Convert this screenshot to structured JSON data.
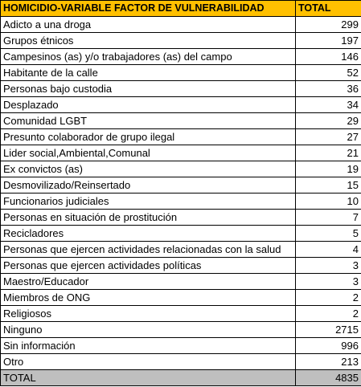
{
  "colors": {
    "header_bg": "#FFC000",
    "total_bg": "#BFBFBF",
    "border": "#000000",
    "text": "#000000"
  },
  "header": {
    "category": "HOMICIDIO-VARIABLE FACTOR DE VULNERABILIDAD",
    "total": "TOTAL"
  },
  "rows": [
    {
      "label": "Adicto a una droga",
      "value": "299"
    },
    {
      "label": "Grupos étnicos",
      "value": "197"
    },
    {
      "label": "Campesinos (as) y/o trabajadores (as) del campo",
      "value": "146"
    },
    {
      "label": "Habitante de la calle",
      "value": "52"
    },
    {
      "label": "Personas bajo custodia",
      "value": "36"
    },
    {
      "label": "Desplazado",
      "value": "34"
    },
    {
      "label": "Comunidad LGBT",
      "value": "29"
    },
    {
      "label": "Presunto colaborador de grupo ilegal",
      "value": "27"
    },
    {
      "label": "Lider social,Ambiental,Comunal",
      "value": "21"
    },
    {
      "label": "Ex convictos (as)",
      "value": "19"
    },
    {
      "label": "Desmovilizado/Reinsertado",
      "value": "15"
    },
    {
      "label": "Funcionarios judiciales",
      "value": "10"
    },
    {
      "label": "Personas en situación de prostitución",
      "value": "7"
    },
    {
      "label": "Recicladores",
      "value": "5"
    },
    {
      "label": "Personas que ejercen actividades relacionadas con la salud",
      "value": "4"
    },
    {
      "label": "Personas que ejercen actividades políticas",
      "value": "3"
    },
    {
      "label": "Maestro/Educador",
      "value": "3"
    },
    {
      "label": "Miembros de ONG",
      "value": "2"
    },
    {
      "label": "Religiosos",
      "value": "2"
    },
    {
      "label": "Ninguno",
      "value": "2715"
    },
    {
      "label": "Sin información",
      "value": "996"
    },
    {
      "label": "Otro",
      "value": "213"
    }
  ],
  "total_row": {
    "label": "TOTAL",
    "value": "4835"
  }
}
